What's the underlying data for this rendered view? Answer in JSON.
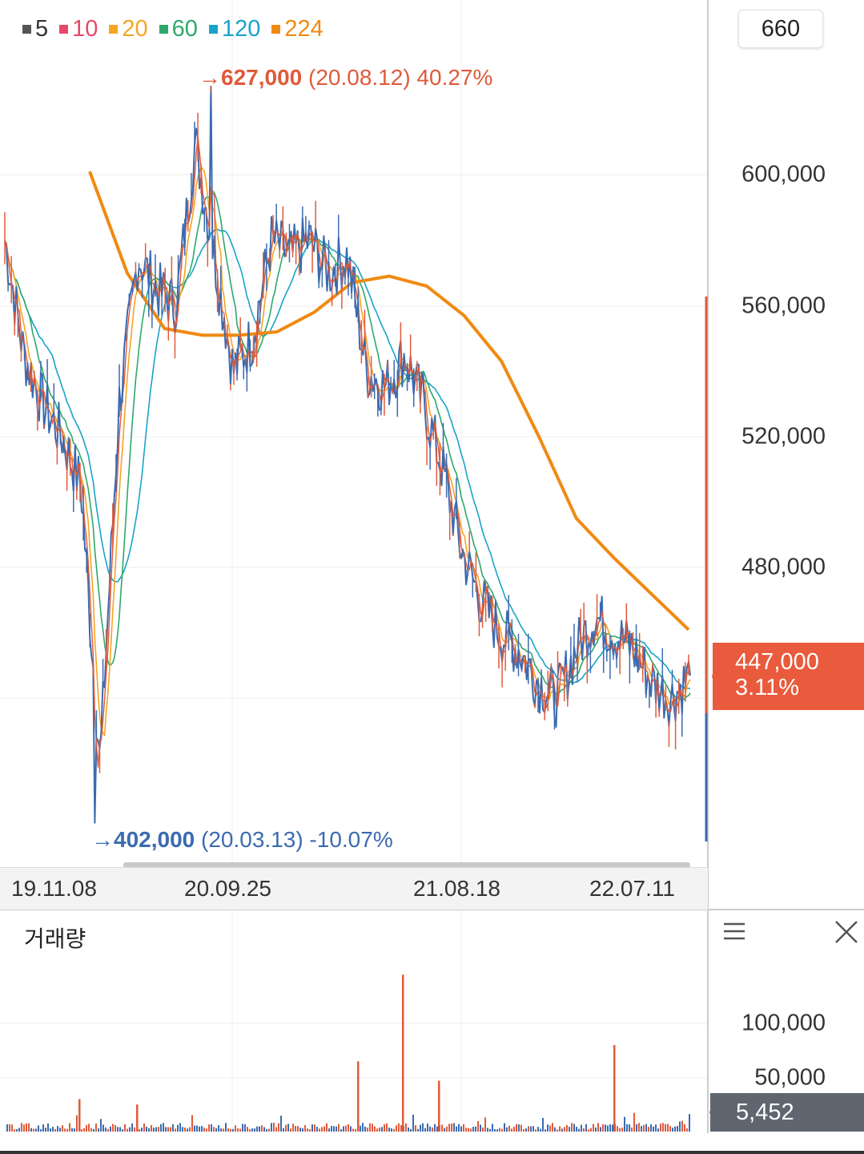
{
  "legend": [
    {
      "label": "5",
      "color": "#555555"
    },
    {
      "label": "10",
      "color": "#e8486a"
    },
    {
      "label": "20",
      "color": "#f4a523"
    },
    {
      "label": "60",
      "color": "#2ea86a"
    },
    {
      "label": "120",
      "color": "#1aa3c9"
    },
    {
      "label": "224",
      "color": "#f08a13"
    }
  ],
  "period_value": "660",
  "high_annotation": {
    "arrow": "→",
    "value": "627,000",
    "detail": "(20.08.12) 40.27%"
  },
  "low_annotation": {
    "arrow": "→",
    "value": "402,000",
    "detail": "(20.03.13) -10.07%"
  },
  "current_price": {
    "value": "447,000",
    "change": "3.11%"
  },
  "volume_panel": {
    "title": "거래량",
    "current_volume": "5,452"
  },
  "colors": {
    "up": "#e05a3a",
    "down": "#3a6bb0",
    "ma224": "#f08a13",
    "ma120": "#1aa3c9",
    "ma60": "#2ea86a",
    "ma20": "#f4a523",
    "price_tag": "#ea5a3c",
    "volume_tag": "#5f6670"
  },
  "chart_data": [
    {
      "type": "line",
      "title": "",
      "x_ticks": [
        "19.11.08",
        "20.09.25",
        "21.08.18",
        "22.07.11"
      ],
      "y_ticks": [
        "600,000",
        "560,000",
        "520,000",
        "480,000"
      ],
      "ylim": [
        395000,
        650000
      ],
      "series": [
        {
          "name": "price",
          "x": [
            "19.10",
            "19.11",
            "19.12",
            "20.01",
            "20.02",
            "20.03",
            "20.04",
            "20.05",
            "20.06",
            "20.07",
            "20.08",
            "20.09",
            "20.10",
            "20.11",
            "20.12",
            "21.01",
            "21.02",
            "21.03",
            "21.04",
            "21.05",
            "21.06",
            "21.07",
            "21.08",
            "21.09",
            "21.10",
            "21.11",
            "21.12",
            "22.01",
            "22.02",
            "22.03",
            "22.04",
            "22.05",
            "22.06",
            "22.07",
            "22.08",
            "22.09",
            "22.10"
          ],
          "values": [
            580000,
            545000,
            530000,
            520000,
            505000,
            420000,
            530000,
            575000,
            565000,
            560000,
            610000,
            575000,
            540000,
            550000,
            580000,
            575000,
            580000,
            570000,
            575000,
            540000,
            535000,
            545000,
            530000,
            510000,
            485000,
            470000,
            460000,
            455000,
            445000,
            440000,
            455000,
            465000,
            460000,
            455000,
            445000,
            440000,
            447000
          ]
        },
        {
          "name": "224",
          "x": [
            "20.02",
            "20.04",
            "20.06",
            "20.08",
            "20.10",
            "20.12",
            "21.02",
            "21.04",
            "21.06",
            "21.08",
            "21.10",
            "21.12",
            "22.02",
            "22.04",
            "22.06",
            "22.08",
            "22.10"
          ],
          "values": [
            601000,
            570000,
            553000,
            551000,
            551000,
            552000,
            558000,
            567000,
            569000,
            566000,
            557000,
            543000,
            520000,
            495000,
            483000,
            472000,
            461000
          ]
        }
      ],
      "high": {
        "value": 627000,
        "date": "20.08.12",
        "change_pct": 40.27
      },
      "low": {
        "value": 402000,
        "date": "20.03.13",
        "change_pct": -10.07
      },
      "last": 447000
    },
    {
      "type": "bar",
      "title": "거래량",
      "y_ticks": [
        "100,000",
        "50,000"
      ],
      "ylim": [
        0,
        150000
      ],
      "spikes": [
        {
          "date": "19.12",
          "value": 30000
        },
        {
          "date": "20.03",
          "value": 25000
        },
        {
          "date": "21.03",
          "value": 65000
        },
        {
          "date": "21.05",
          "value": 145000
        },
        {
          "date": "21.06",
          "value": 47000
        },
        {
          "date": "22.05",
          "value": 80000
        }
      ],
      "last": 5452
    }
  ]
}
